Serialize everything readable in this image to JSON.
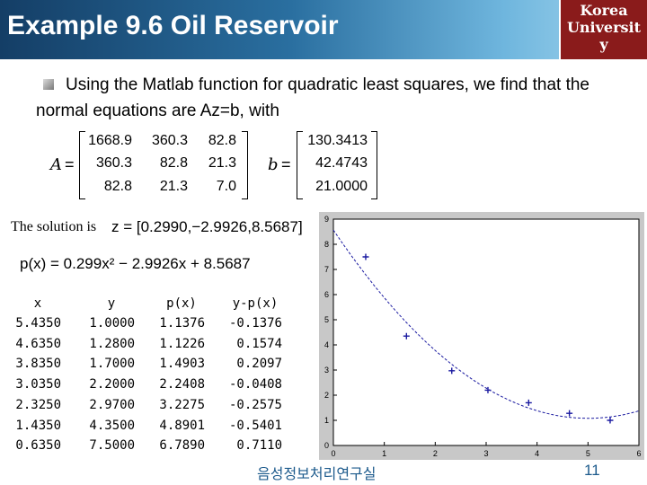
{
  "slide": {
    "title": "Example 9.6 Oil Reservoir",
    "logo_text": [
      "Korea",
      "Universit",
      "y"
    ],
    "bullet_text": "Using the Matlab function for quadratic least squares, we find that the normal equations are Az=b, with",
    "matrix_A_label": "A",
    "matrix_b_label": "b",
    "equals": "=",
    "matrix_A": [
      [
        "1668.9",
        "360.3",
        "82.8"
      ],
      [
        "360.3",
        "82.8",
        "21.3"
      ],
      [
        "82.8",
        "21.3",
        "7.0"
      ]
    ],
    "vector_b": [
      "130.3413",
      "42.4743",
      "21.0000"
    ],
    "solution_label": "The solution is",
    "solution_text": "z = [0.2990,−2.9926,8.5687]",
    "polynomial_text": "p(x) = 0.299x² − 2.9926x + 8.5687",
    "footer_left": "음성정보처리연구실",
    "page_number": "11"
  },
  "table": {
    "headers": [
      "x",
      "y",
      "p(x)",
      "y-p(x)"
    ],
    "rows": [
      [
        "5.4350",
        "1.0000",
        "1.1376",
        "-0.1376"
      ],
      [
        "4.6350",
        "1.2800",
        "1.1226",
        "0.1574"
      ],
      [
        "3.8350",
        "1.7000",
        "1.4903",
        "0.2097"
      ],
      [
        "3.0350",
        "2.2000",
        "2.2408",
        "-0.0408"
      ],
      [
        "2.3250",
        "2.9700",
        "3.2275",
        "-0.2575"
      ],
      [
        "1.4350",
        "4.3500",
        "4.8901",
        "-0.5401"
      ],
      [
        "0.6350",
        "7.5000",
        "6.7890",
        "0.7110"
      ]
    ]
  },
  "chart_data": {
    "type": "scatter",
    "x": [
      0.635,
      1.435,
      2.325,
      3.035,
      3.835,
      4.635,
      5.435
    ],
    "y": [
      7.5,
      4.35,
      2.97,
      2.2,
      1.7,
      1.28,
      1.0
    ],
    "fit": {
      "a": 0.299,
      "b": -2.9926,
      "c": 8.5687,
      "style": "dashed"
    },
    "xlim": [
      0,
      6
    ],
    "ylim": [
      0,
      9
    ],
    "xticks": [
      "0",
      "1",
      "2",
      "3",
      "4",
      "5",
      "6"
    ],
    "yticks": [
      "0",
      "1",
      "2",
      "3",
      "4",
      "5",
      "6",
      "7",
      "8",
      "9"
    ],
    "grid": false,
    "marker_color": "#1a1aa0",
    "line_color": "#1a1aa0"
  }
}
